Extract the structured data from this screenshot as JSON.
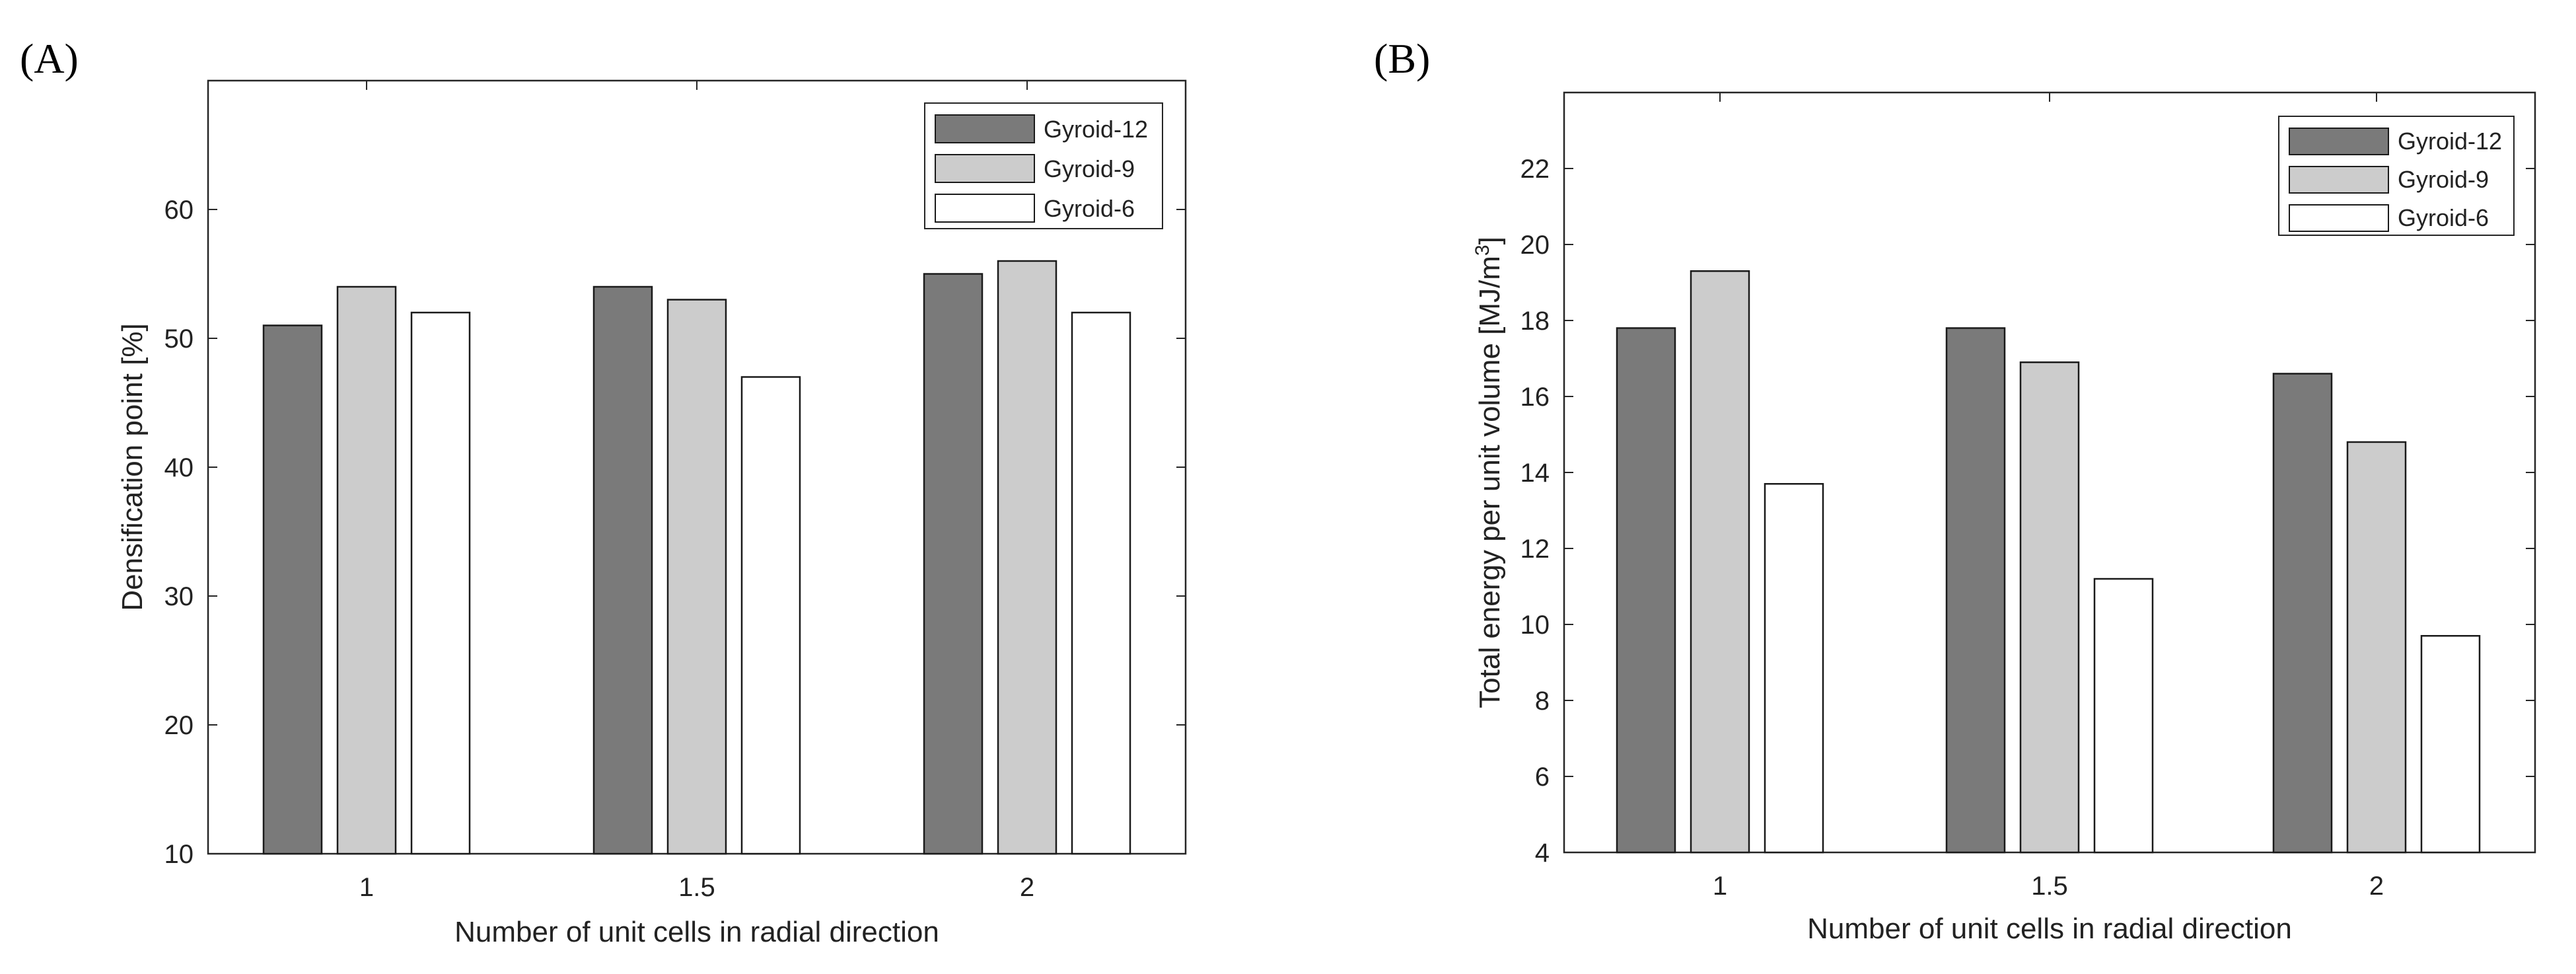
{
  "chart_data": [
    {
      "panel": "(A)",
      "type": "bar",
      "title": "",
      "xlabel": "Number of unit cells in radial direction",
      "ylabel": "Densification point [%]",
      "categories": [
        "1",
        "1.5",
        "2"
      ],
      "ylim": [
        10,
        70
      ],
      "yticks": [
        10,
        20,
        30,
        40,
        50,
        60
      ],
      "grid": false,
      "legend_position": "top-right",
      "series": [
        {
          "name": "Gyroid-12",
          "color": "#7a7a7a",
          "values": [
            51,
            54,
            55
          ]
        },
        {
          "name": "Gyroid-9",
          "color": "#cccccc",
          "values": [
            54,
            53,
            56
          ]
        },
        {
          "name": "Gyroid-6",
          "color": "#ffffff",
          "values": [
            52,
            47,
            52
          ]
        }
      ]
    },
    {
      "panel": "(B)",
      "type": "bar",
      "title": "",
      "xlabel": "Number of unit cells in radial direction",
      "ylabel": "Total energy per unit volume [MJ/m",
      "ylabel_sup": "3",
      "ylabel_end": "]",
      "categories": [
        "1",
        "1.5",
        "2"
      ],
      "ylim": [
        4,
        24
      ],
      "yticks": [
        4,
        6,
        8,
        10,
        12,
        14,
        16,
        18,
        20,
        22
      ],
      "grid": false,
      "legend_position": "top-right",
      "series": [
        {
          "name": "Gyroid-12",
          "color": "#7a7a7a",
          "values": [
            17.8,
            17.8,
            16.6
          ]
        },
        {
          "name": "Gyroid-9",
          "color": "#cccccc",
          "values": [
            19.3,
            16.9,
            14.8
          ]
        },
        {
          "name": "Gyroid-6",
          "color": "#ffffff",
          "values": [
            13.7,
            11.2,
            9.7
          ]
        }
      ]
    }
  ]
}
